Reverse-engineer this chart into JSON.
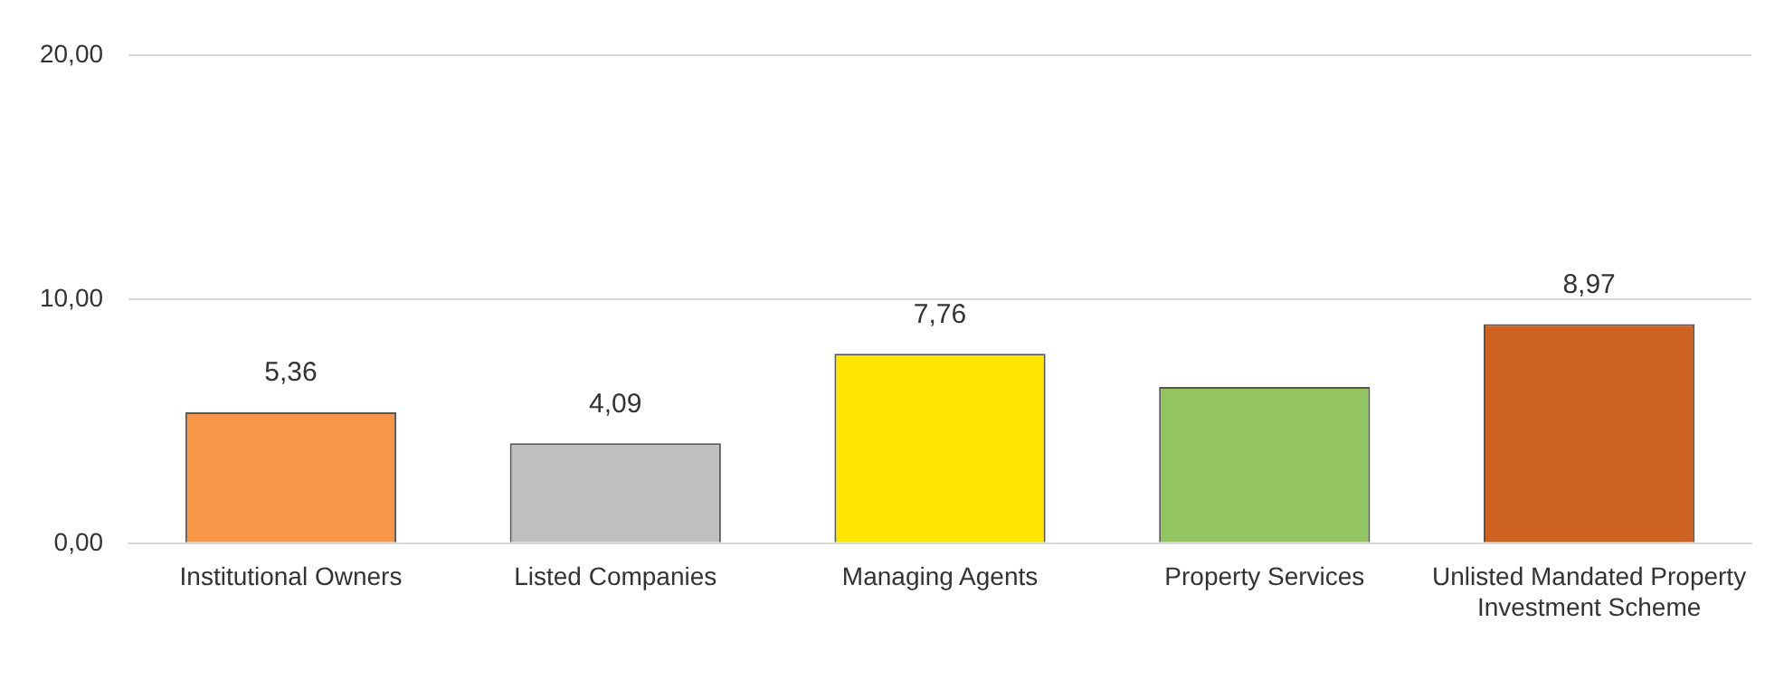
{
  "chart_data": {
    "type": "bar",
    "categories": [
      "Institutional Owners",
      "Listed Companies",
      "Managing Agents",
      "Property Services",
      "Unlisted Mandated Property Investment Scheme"
    ],
    "values": [
      5.36,
      4.09,
      7.76,
      6.4,
      8.97
    ],
    "value_labels": [
      "5,36",
      "4,09",
      "7,76",
      null,
      "8,97"
    ],
    "colors": [
      "#f79646",
      "#bfbfbf",
      "#ffe500",
      "#92c461",
      "#cd6223"
    ],
    "ylim": [
      0,
      20
    ],
    "yticks": [
      {
        "value": 0,
        "label": "0,00"
      },
      {
        "value": 10,
        "label": "10,00"
      },
      {
        "value": 20,
        "label": "20,00"
      }
    ],
    "grid": "y",
    "legend": false
  }
}
